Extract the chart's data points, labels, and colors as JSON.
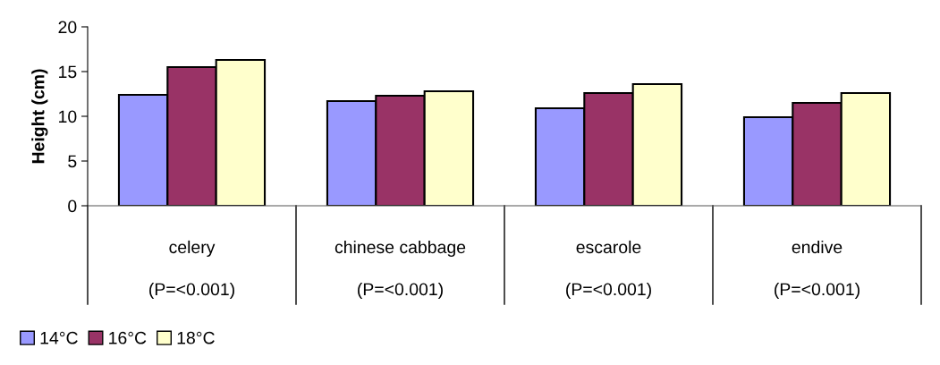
{
  "chart_data": {
    "type": "bar",
    "ylabel": "Height (cm)",
    "categories": [
      "celery",
      "chinese cabbage",
      "escarole",
      "endive"
    ],
    "series": [
      {
        "name": "14°C",
        "color": "#9999ff",
        "values": [
          12.4,
          11.7,
          10.9,
          9.9
        ]
      },
      {
        "name": "16°C",
        "color": "#993366",
        "values": [
          15.5,
          12.3,
          12.6,
          11.5
        ]
      },
      {
        "name": "18°C",
        "color": "#ffffcc",
        "values": [
          16.3,
          12.8,
          13.6,
          12.6
        ]
      }
    ],
    "ylim": [
      0,
      20
    ],
    "yticks": [
      0,
      5,
      10,
      15,
      20
    ],
    "grid": false,
    "legend": "bottom left",
    "annotations": [
      "(P=<0.001)",
      "(P=<0.001)",
      "(P=<0.001)",
      "(P=<0.001)"
    ]
  }
}
